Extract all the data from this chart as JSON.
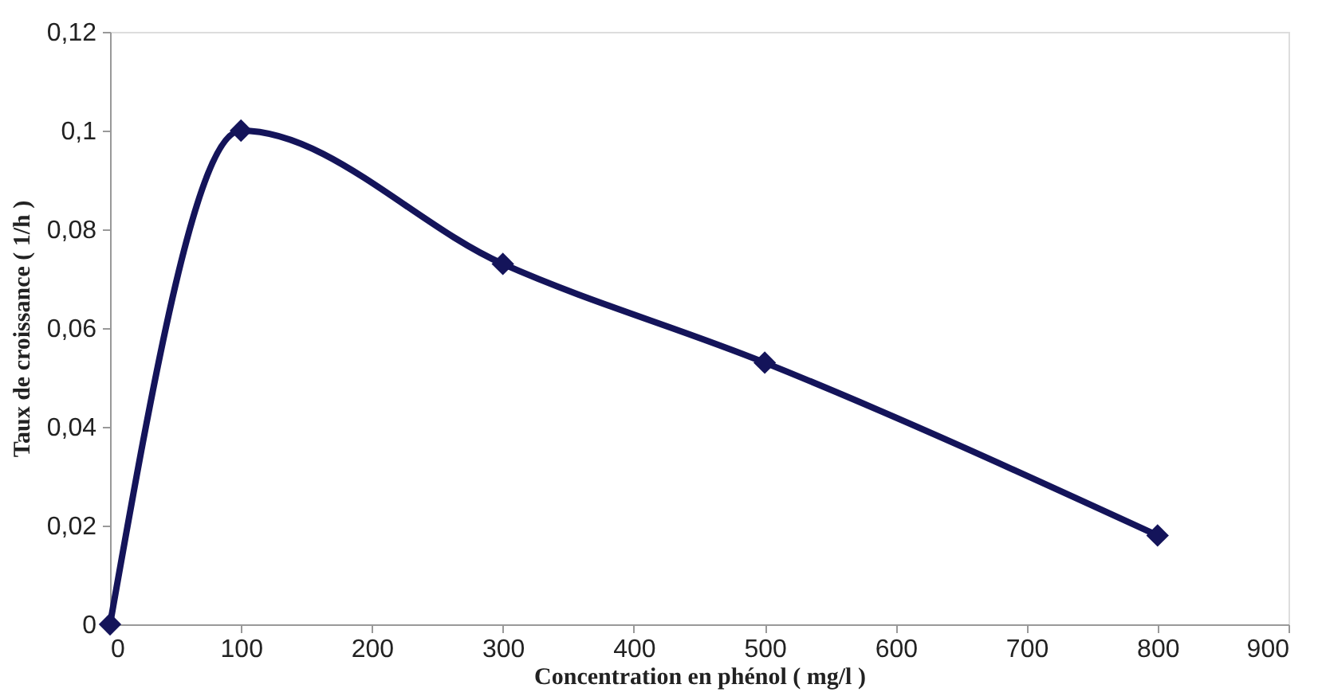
{
  "chart_data": {
    "type": "line",
    "xlabel": "Concentration en phénol ( mg/l )",
    "ylabel": "Taux de croissance ( 1/h )",
    "x": [
      0,
      100,
      300,
      500,
      800
    ],
    "series": [
      {
        "color": "#14145a",
        "values": [
          0,
          0.1,
          0.073,
          0.053,
          0.018
        ]
      }
    ],
    "xlim": [
      0,
      900
    ],
    "xticks": [
      0,
      100,
      200,
      300,
      400,
      500,
      600,
      700,
      800,
      900
    ],
    "ylim": [
      0,
      0.12
    ],
    "yticks": [
      {
        "value": 0,
        "label": "0"
      },
      {
        "value": 0.02,
        "label": "0,02"
      },
      {
        "value": 0.04,
        "label": "0,04"
      },
      {
        "value": 0.06,
        "label": "0,06"
      },
      {
        "value": 0.08,
        "label": "0,08"
      },
      {
        "value": 0.1,
        "label": "0,1"
      },
      {
        "value": 0.12,
        "label": "0,12"
      }
    ],
    "marker": "diamond",
    "line_style": "solid",
    "grid": false
  }
}
